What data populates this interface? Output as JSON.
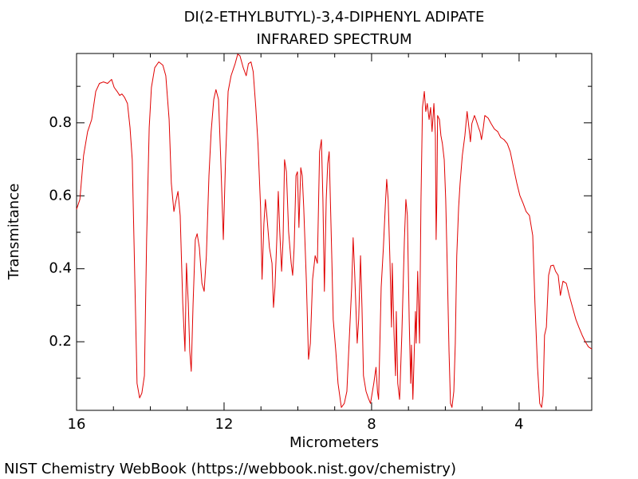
{
  "chart_data": {
    "type": "line",
    "title": "DI(2-ETHYLBUTYL)-3,4-DIPHENYL ADIPATE",
    "subtitle": "INFRARED SPECTRUM",
    "x_label": "Micrometers",
    "y_label": "Transmitance",
    "source": "NIST Chemistry WebBook (https://webbook.nist.gov/chemistry)",
    "xlim": [
      16,
      2.03
    ],
    "ylim": [
      0.012,
      0.99
    ],
    "xticks": [
      16,
      12,
      8,
      4
    ],
    "yticks": [
      0.2,
      0.4,
      0.6,
      0.8
    ],
    "xticks_minor": [
      15,
      14,
      13,
      11,
      10,
      9,
      7,
      6,
      5,
      3
    ],
    "yticks_minor": [
      0.1,
      0.3,
      0.5,
      0.7,
      0.9
    ],
    "series": [
      {
        "color": "#e00000",
        "x": [
          16.0,
          15.91,
          15.81,
          15.7,
          15.59,
          15.48,
          15.38,
          15.27,
          15.16,
          15.05,
          14.98,
          14.9,
          14.83,
          14.77,
          14.7,
          14.62,
          14.55,
          14.49,
          14.42,
          14.36,
          14.29,
          14.23,
          14.16,
          14.1,
          14.03,
          13.97,
          13.88,
          13.77,
          13.66,
          13.58,
          13.49,
          13.43,
          13.36,
          13.32,
          13.25,
          13.19,
          13.12,
          13.06,
          13.02,
          12.97,
          12.93,
          12.89,
          12.84,
          12.78,
          12.73,
          12.67,
          12.6,
          12.54,
          12.48,
          12.41,
          12.35,
          12.28,
          12.22,
          12.15,
          12.09,
          12.02,
          11.96,
          11.89,
          11.81,
          11.7,
          11.63,
          11.57,
          11.48,
          11.4,
          11.34,
          11.27,
          11.21,
          11.14,
          11.08,
          11.01,
          10.97,
          10.92,
          10.88,
          10.84,
          10.77,
          10.7,
          10.66,
          10.62,
          10.57,
          10.53,
          10.49,
          10.44,
          10.4,
          10.36,
          10.31,
          10.25,
          10.18,
          10.14,
          10.1,
          10.05,
          10.01,
          9.97,
          9.92,
          9.88,
          9.84,
          9.77,
          9.71,
          9.66,
          9.6,
          9.53,
          9.47,
          9.41,
          9.36,
          9.32,
          9.28,
          9.23,
          9.19,
          9.15,
          9.08,
          9.04,
          8.97,
          8.91,
          8.82,
          8.74,
          8.67,
          8.61,
          8.54,
          8.5,
          8.46,
          8.39,
          8.35,
          8.3,
          8.26,
          8.22,
          8.15,
          8.09,
          8.03,
          7.94,
          7.88,
          7.84,
          7.81,
          7.74,
          7.68,
          7.63,
          7.59,
          7.55,
          7.5,
          7.46,
          7.44,
          7.39,
          7.35,
          7.33,
          7.29,
          7.24,
          7.18,
          7.11,
          7.07,
          7.03,
          6.98,
          6.94,
          6.92,
          6.88,
          6.83,
          6.81,
          6.79,
          6.75,
          6.7,
          6.66,
          6.62,
          6.57,
          6.53,
          6.49,
          6.44,
          6.4,
          6.36,
          6.31,
          6.27,
          6.25,
          6.23,
          6.21,
          6.16,
          6.12,
          6.08,
          6.03,
          5.99,
          5.95,
          5.9,
          5.86,
          5.82,
          5.77,
          5.73,
          5.69,
          5.64,
          5.6,
          5.54,
          5.47,
          5.41,
          5.36,
          5.32,
          5.28,
          5.21,
          5.17,
          5.1,
          5.06,
          5.02,
          4.97,
          4.93,
          4.84,
          4.76,
          4.67,
          4.58,
          4.5,
          4.41,
          4.32,
          4.24,
          4.15,
          4.06,
          3.98,
          3.89,
          3.81,
          3.72,
          3.63,
          3.57,
          3.5,
          3.44,
          3.39,
          3.35,
          3.31,
          3.26,
          3.2,
          3.14,
          3.07,
          3.01,
          2.94,
          2.88,
          2.81,
          2.72,
          2.64,
          2.55,
          2.46,
          2.38,
          2.29,
          2.21,
          2.12,
          2.03
        ],
        "values": [
          0.563,
          0.59,
          0.71,
          0.776,
          0.809,
          0.886,
          0.908,
          0.912,
          0.908,
          0.919,
          0.897,
          0.886,
          0.875,
          0.879,
          0.87,
          0.853,
          0.787,
          0.699,
          0.371,
          0.086,
          0.046,
          0.059,
          0.107,
          0.48,
          0.787,
          0.897,
          0.951,
          0.967,
          0.958,
          0.929,
          0.809,
          0.634,
          0.557,
          0.579,
          0.612,
          0.546,
          0.305,
          0.174,
          0.415,
          0.305,
          0.174,
          0.119,
          0.305,
          0.48,
          0.496,
          0.458,
          0.36,
          0.338,
          0.436,
          0.655,
          0.776,
          0.864,
          0.891,
          0.864,
          0.699,
          0.48,
          0.699,
          0.886,
          0.929,
          0.962,
          0.988,
          0.984,
          0.951,
          0.929,
          0.962,
          0.967,
          0.94,
          0.842,
          0.743,
          0.568,
          0.371,
          0.524,
          0.59,
          0.546,
          0.458,
          0.415,
          0.294,
          0.349,
          0.48,
          0.612,
          0.502,
          0.393,
          0.48,
          0.699,
          0.666,
          0.502,
          0.415,
          0.382,
          0.458,
          0.655,
          0.666,
          0.513,
          0.677,
          0.655,
          0.568,
          0.371,
          0.152,
          0.196,
          0.371,
          0.436,
          0.415,
          0.721,
          0.754,
          0.59,
          0.338,
          0.59,
          0.688,
          0.721,
          0.436,
          0.261,
          0.174,
          0.086,
          0.02,
          0.031,
          0.064,
          0.196,
          0.349,
          0.485,
          0.393,
          0.196,
          0.261,
          0.436,
          0.294,
          0.107,
          0.064,
          0.046,
          0.031,
          0.086,
          0.13,
          0.064,
          0.042,
          0.349,
          0.458,
          0.568,
          0.645,
          0.59,
          0.415,
          0.24,
          0.415,
          0.218,
          0.107,
          0.283,
          0.086,
          0.042,
          0.218,
          0.48,
          0.59,
          0.546,
          0.261,
          0.086,
          0.191,
          0.042,
          0.218,
          0.283,
          0.196,
          0.393,
          0.196,
          0.59,
          0.842,
          0.886,
          0.831,
          0.853,
          0.809,
          0.842,
          0.776,
          0.853,
          0.765,
          0.48,
          0.59,
          0.82,
          0.809,
          0.765,
          0.743,
          0.699,
          0.59,
          0.415,
          0.174,
          0.031,
          0.02,
          0.064,
          0.196,
          0.436,
          0.568,
          0.634,
          0.71,
          0.765,
          0.831,
          0.787,
          0.748,
          0.798,
          0.82,
          0.809,
          0.787,
          0.776,
          0.754,
          0.787,
          0.82,
          0.813,
          0.798,
          0.783,
          0.776,
          0.76,
          0.754,
          0.743,
          0.721,
          0.677,
          0.634,
          0.601,
          0.579,
          0.557,
          0.546,
          0.491,
          0.305,
          0.13,
          0.031,
          0.02,
          0.053,
          0.218,
          0.24,
          0.382,
          0.408,
          0.41,
          0.393,
          0.382,
          0.327,
          0.366,
          0.36,
          0.327,
          0.294,
          0.261,
          0.24,
          0.218,
          0.201,
          0.186,
          0.18
        ]
      }
    ]
  }
}
